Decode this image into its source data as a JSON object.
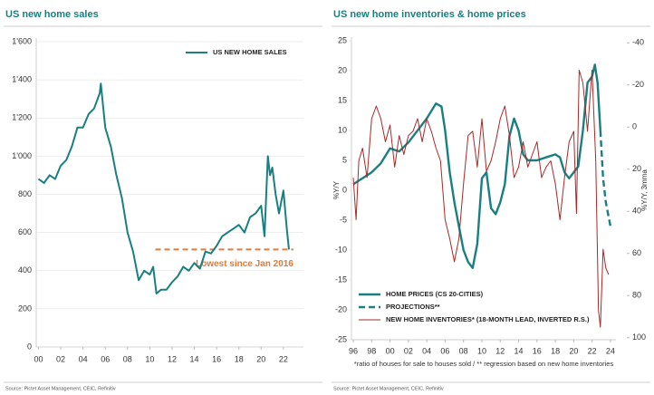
{
  "chart_data": [
    {
      "type": "line",
      "title": "US new home sales",
      "source": "Source: Pictet Asset Management, CEIC, Refinitiv",
      "xlim": [
        1999.8,
        2023.8
      ],
      "xticks": [
        {
          "value": 2000,
          "label": "00"
        },
        {
          "value": 2002,
          "label": "02"
        },
        {
          "value": 2004,
          "label": "04"
        },
        {
          "value": 2006,
          "label": "06"
        },
        {
          "value": 2008,
          "label": "08"
        },
        {
          "value": 2010,
          "label": "10"
        },
        {
          "value": 2012,
          "label": "12"
        },
        {
          "value": 2014,
          "label": "14"
        },
        {
          "value": 2016,
          "label": "16"
        },
        {
          "value": 2018,
          "label": "18"
        },
        {
          "value": 2020,
          "label": "20"
        },
        {
          "value": 2022,
          "label": "22"
        }
      ],
      "ylim": [
        0,
        1600
      ],
      "yticks": [
        0,
        200,
        400,
        600,
        800,
        {
          "value": 1000,
          "label": "1'000"
        },
        {
          "value": 1200,
          "label": "1'200"
        },
        {
          "value": 1400,
          "label": "1'400"
        },
        {
          "value": 1600,
          "label": "1'600"
        }
      ],
      "grid": true,
      "legend": "upper right",
      "series": [
        {
          "name": "US NEW HOME SALES",
          "color": "#1a7f80",
          "x": [
            2000,
            2000.5,
            2001,
            2001.5,
            2002,
            2002.5,
            2003,
            2003.5,
            2004,
            2004.5,
            2005,
            2005.5,
            2005.6,
            2006,
            2006.5,
            2007,
            2007.5,
            2008,
            2008.5,
            2009,
            2009.5,
            2010,
            2010.3,
            2010.6,
            2011,
            2011.5,
            2012,
            2012.5,
            2013,
            2013.5,
            2014,
            2014.5,
            2015,
            2015.5,
            2016,
            2016.5,
            2017,
            2017.5,
            2018,
            2018.5,
            2019,
            2019.5,
            2020,
            2020.3,
            2020.6,
            2020.8,
            2021,
            2021.3,
            2021.6,
            2022,
            2022.3,
            2022.5
          ],
          "values": [
            880,
            860,
            900,
            880,
            950,
            980,
            1050,
            1150,
            1150,
            1220,
            1250,
            1330,
            1380,
            1150,
            1050,
            900,
            780,
            600,
            500,
            350,
            400,
            380,
            420,
            280,
            300,
            300,
            340,
            370,
            420,
            400,
            440,
            410,
            500,
            490,
            530,
            580,
            600,
            620,
            640,
            600,
            680,
            700,
            740,
            580,
            1000,
            900,
            940,
            800,
            700,
            820,
            620,
            511
          ]
        }
      ],
      "annotation": {
        "text": "Lowest since Jan 2016",
        "value": 511,
        "color": "#e07b39"
      }
    },
    {
      "type": "line",
      "title": "US new home inventories & home prices",
      "source": "Source: Pictet Asset Management, CEIC, Refinitiv",
      "footnote": "*ratio of houses for sale to houses sold / ** regression based on new home inventories",
      "ylabel": "%Y/Y",
      "y2label": "%Y/Y, 3mma",
      "xlim": [
        1995.8,
        2024.6
      ],
      "xticks": [
        {
          "value": 1996,
          "label": "96"
        },
        {
          "value": 1998,
          "label": "98"
        },
        {
          "value": 2000,
          "label": "00"
        },
        {
          "value": 2002,
          "label": "02"
        },
        {
          "value": 2004,
          "label": "04"
        },
        {
          "value": 2006,
          "label": "06"
        },
        {
          "value": 2008,
          "label": "08"
        },
        {
          "value": 2010,
          "label": "10"
        },
        {
          "value": 2012,
          "label": "12"
        },
        {
          "value": 2014,
          "label": "14"
        },
        {
          "value": 2016,
          "label": "16"
        },
        {
          "value": 2018,
          "label": "18"
        },
        {
          "value": 2020,
          "label": "20"
        },
        {
          "value": 2022,
          "label": "22"
        },
        {
          "value": 2024,
          "label": "24"
        }
      ],
      "ylim": [
        -25,
        25
      ],
      "yticks": [
        -25,
        -20,
        -15,
        -10,
        -5,
        0,
        5,
        10,
        15,
        20,
        25
      ],
      "y2lim": [
        -41,
        101
      ],
      "y2_inverted": true,
      "y2ticks": [
        -40,
        -20,
        0,
        20,
        40,
        60,
        80,
        100
      ],
      "grid": false,
      "legend": "lower left",
      "series": [
        {
          "name": "HOME PRICES (CS 20-CITIES)",
          "color": "#1a7f80",
          "width": 2.4,
          "x": [
            1996,
            1997,
            1998,
            1999,
            2000,
            2001,
            2002,
            2003,
            2004,
            2005,
            2005.6,
            2006,
            2006.5,
            2007,
            2007.5,
            2008,
            2008.5,
            2009,
            2009.5,
            2010,
            2010.5,
            2011,
            2011.5,
            2012,
            2012.5,
            2013,
            2013.5,
            2014,
            2014.5,
            2015,
            2016,
            2017,
            2018,
            2018.5,
            2019,
            2019.5,
            2020,
            2020.5,
            2021,
            2021.5,
            2022,
            2022.3,
            2022.6,
            2022.9
          ],
          "values": [
            1,
            2,
            3,
            4.5,
            7,
            6.5,
            8,
            10,
            12,
            14.5,
            14,
            10,
            3,
            -2,
            -6,
            -10,
            -12,
            -13,
            -9,
            2,
            3,
            -3,
            -4,
            -2,
            1,
            9,
            12,
            10,
            6,
            5,
            5,
            5.5,
            6,
            5.5,
            3,
            2,
            3,
            4,
            10,
            18,
            19,
            21,
            18,
            10
          ]
        },
        {
          "name": "PROJECTIONS**",
          "color": "#1a7f80",
          "width": 2.4,
          "dash": true,
          "x": [
            2022.9,
            2023.2,
            2023.5,
            2024
          ],
          "values": [
            10,
            2,
            -2,
            -6
          ]
        },
        {
          "name": "NEW HOME INVENTORIES* (18-MONTH LEAD, INVERTED R.S.)",
          "color": "#a52a2a",
          "width": 1,
          "axis": "y2",
          "x": [
            1996,
            1996.3,
            1996.6,
            1997,
            1997.5,
            1998,
            1998.5,
            1999,
            1999.5,
            2000,
            2000.5,
            2001,
            2001.5,
            2002,
            2002.5,
            2003,
            2003.5,
            2004,
            2004.5,
            2005,
            2005.5,
            2006,
            2006.5,
            2007,
            2007.5,
            2008,
            2008.5,
            2009,
            2009.5,
            2010,
            2010.5,
            2011,
            2011.5,
            2012,
            2012.5,
            2013,
            2013.5,
            2014,
            2014.5,
            2015,
            2015.5,
            2016,
            2016.5,
            2017,
            2017.5,
            2018,
            2018.5,
            2019,
            2019.5,
            2020,
            2020.3,
            2020.6,
            2021,
            2021.5,
            2022,
            2022.4,
            2022.7,
            2022.9,
            2023.2,
            2023.5,
            2023.8
          ],
          "values": [
            24,
            44,
            16,
            10,
            24,
            -4,
            -10,
            -4,
            7,
            -1,
            19,
            4,
            13,
            4,
            2,
            -4,
            7,
            -4,
            2,
            10,
            16,
            44,
            53,
            64,
            53,
            27,
            4,
            2,
            19,
            -4,
            21,
            16,
            7,
            -4,
            -10,
            4,
            24,
            19,
            7,
            19,
            13,
            7,
            24,
            19,
            16,
            27,
            44,
            24,
            7,
            2,
            41,
            -27,
            -21,
            2,
            -27,
            16,
            87,
            95,
            58,
            67,
            70
          ]
        }
      ]
    }
  ]
}
